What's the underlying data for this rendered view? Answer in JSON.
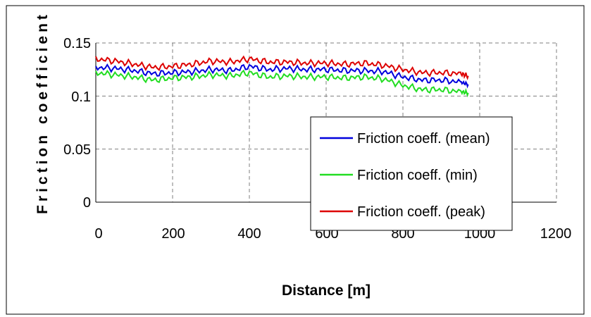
{
  "chart_data": {
    "type": "line",
    "title": "",
    "xlabel": "Distance [m]",
    "ylabel": "Friction coefficient",
    "xlim": [
      0,
      1200
    ],
    "ylim": [
      0,
      0.15
    ],
    "x_ticks": [
      "0",
      "200",
      "400",
      "600",
      "800",
      "1000",
      "1200"
    ],
    "y_ticks": [
      "0",
      "0.05",
      "0.1",
      "0.15"
    ],
    "grid": "dashed",
    "legend_position": "bottom-right",
    "x": [
      0,
      50,
      100,
      150,
      200,
      250,
      300,
      350,
      400,
      450,
      500,
      550,
      600,
      650,
      700,
      750,
      800,
      850,
      900,
      950,
      970
    ],
    "series": [
      {
        "name": "Friction coeff. (mean)",
        "color": "#0000dd",
        "values": [
          0.127,
          0.126,
          0.124,
          0.121,
          0.122,
          0.123,
          0.125,
          0.124,
          0.128,
          0.125,
          0.126,
          0.125,
          0.125,
          0.124,
          0.124,
          0.123,
          0.118,
          0.115,
          0.115,
          0.113,
          0.111
        ]
      },
      {
        "name": "Friction coeff. (min)",
        "color": "#22dd22",
        "values": [
          0.122,
          0.12,
          0.118,
          0.115,
          0.117,
          0.118,
          0.12,
          0.119,
          0.122,
          0.118,
          0.119,
          0.118,
          0.118,
          0.117,
          0.118,
          0.116,
          0.11,
          0.106,
          0.106,
          0.104,
          0.103
        ]
      },
      {
        "name": "Friction coeff. (peak)",
        "color": "#dd0000",
        "values": [
          0.135,
          0.133,
          0.13,
          0.127,
          0.128,
          0.13,
          0.133,
          0.132,
          0.135,
          0.132,
          0.132,
          0.131,
          0.131,
          0.13,
          0.131,
          0.129,
          0.125,
          0.122,
          0.122,
          0.121,
          0.119
        ]
      }
    ]
  }
}
